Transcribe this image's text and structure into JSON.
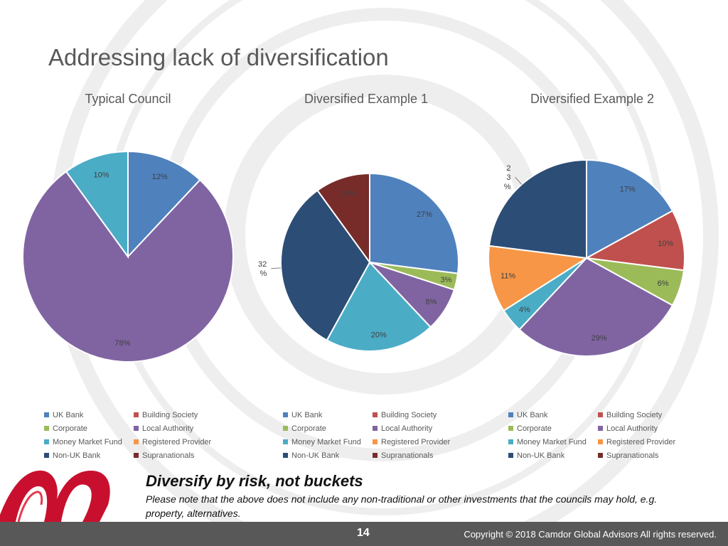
{
  "slide": {
    "title": "Addressing lack of diversification",
    "tagline": "Diversify by risk, not buckets",
    "note": "Please note that the above does not include any non-traditional or other investments that the councils may hold, e.g. property, alternatives.",
    "page_number": "14",
    "copyright": "Copyright © 2018 Camdor Global Advisors All rights reserved."
  },
  "legend_entries": [
    {
      "label": "UK Bank",
      "color": "#4f81bd"
    },
    {
      "label": "Building Society",
      "color": "#c0504d"
    },
    {
      "label": "Corporate",
      "color": "#9bbb59"
    },
    {
      "label": "Local Authority",
      "color": "#8064a2"
    },
    {
      "label": "Money Market Fund",
      "color": "#4bacc6"
    },
    {
      "label": "Registered Provider",
      "color": "#f79646"
    },
    {
      "label": "Non-UK Bank",
      "color": "#2c4d75"
    },
    {
      "label": "Supranationals",
      "color": "#772c2a"
    }
  ],
  "chart_data": [
    {
      "type": "pie",
      "title": "Typical Council",
      "slices": [
        {
          "category": "UK Bank",
          "value": 12,
          "label": "12%",
          "color": "#4f81bd"
        },
        {
          "category": "Local Authority",
          "value": 78,
          "label": "78%",
          "color": "#8064a2"
        },
        {
          "category": "Money Market Fund",
          "value": 10,
          "label": "10%",
          "color": "#4bacc6"
        }
      ],
      "legend_position": "bottom"
    },
    {
      "type": "pie",
      "title": "Diversified Example 1",
      "slices": [
        {
          "category": "UK Bank",
          "value": 27,
          "label": "27%",
          "color": "#4f81bd"
        },
        {
          "category": "Corporate",
          "value": 3,
          "label": "3%",
          "color": "#9bbb59"
        },
        {
          "category": "Local Authority",
          "value": 8,
          "label": "8%",
          "color": "#8064a2"
        },
        {
          "category": "Money Market Fund",
          "value": 20,
          "label": "20%",
          "color": "#4bacc6"
        },
        {
          "category": "Non-UK Bank",
          "value": 32,
          "label": "32\n%",
          "color": "#2c4d75"
        },
        {
          "category": "Supranationals",
          "value": 10,
          "label": "10%",
          "color": "#772c2a"
        }
      ],
      "legend_position": "bottom"
    },
    {
      "type": "pie",
      "title": "Diversified Example 2",
      "slices": [
        {
          "category": "UK Bank",
          "value": 17,
          "label": "17%",
          "color": "#4f81bd"
        },
        {
          "category": "Building Society",
          "value": 10,
          "label": "10%",
          "color": "#c0504d"
        },
        {
          "category": "Corporate",
          "value": 6,
          "label": "6%",
          "color": "#9bbb59"
        },
        {
          "category": "Local Authority",
          "value": 29,
          "label": "29%",
          "color": "#8064a2"
        },
        {
          "category": "Money Market Fund",
          "value": 4,
          "label": "4%",
          "color": "#4bacc6"
        },
        {
          "category": "Registered Provider",
          "value": 11,
          "label": "11%",
          "color": "#f79646"
        },
        {
          "category": "Non-UK Bank",
          "value": 23,
          "label": "2\n3\n%",
          "color": "#2c4d75"
        }
      ],
      "legend_position": "bottom"
    }
  ]
}
